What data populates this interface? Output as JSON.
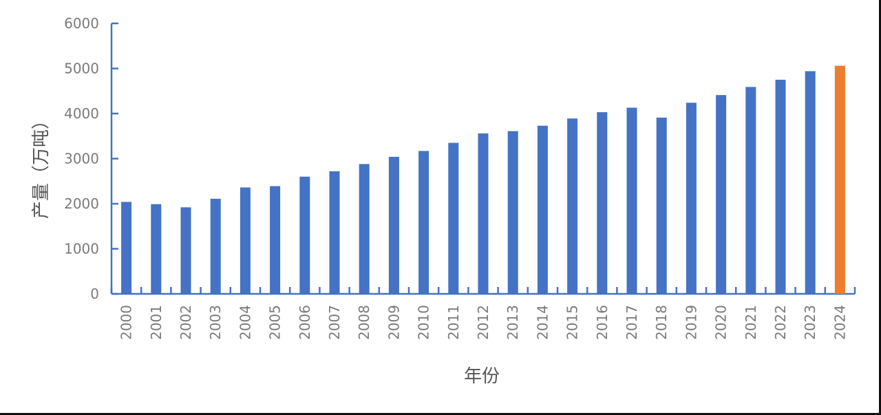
{
  "chart_data": {
    "type": "bar",
    "xlabel": "年份",
    "ylabel": "产量（万吨）",
    "ylim": [
      0,
      6000
    ],
    "yticks": [
      0,
      1000,
      2000,
      3000,
      4000,
      5000,
      6000
    ],
    "grid": false,
    "categories": [
      "2000",
      "2001",
      "2002",
      "2003",
      "2004",
      "2005",
      "2006",
      "2007",
      "2008",
      "2009",
      "2010",
      "2011",
      "2012",
      "2013",
      "2014",
      "2015",
      "2016",
      "2017",
      "2018",
      "2019",
      "2020",
      "2021",
      "2022",
      "2023",
      "2024"
    ],
    "values": [
      2040,
      1990,
      1920,
      2110,
      2360,
      2390,
      2600,
      2720,
      2880,
      3040,
      3170,
      3350,
      3560,
      3610,
      3730,
      3890,
      4030,
      4130,
      3910,
      4240,
      4410,
      4590,
      4750,
      4940,
      5060
    ],
    "colors": {
      "bar": "#4472c4",
      "highlight": "#ed7d31",
      "axis": "#4472c4"
    },
    "highlight_category": "2024"
  }
}
